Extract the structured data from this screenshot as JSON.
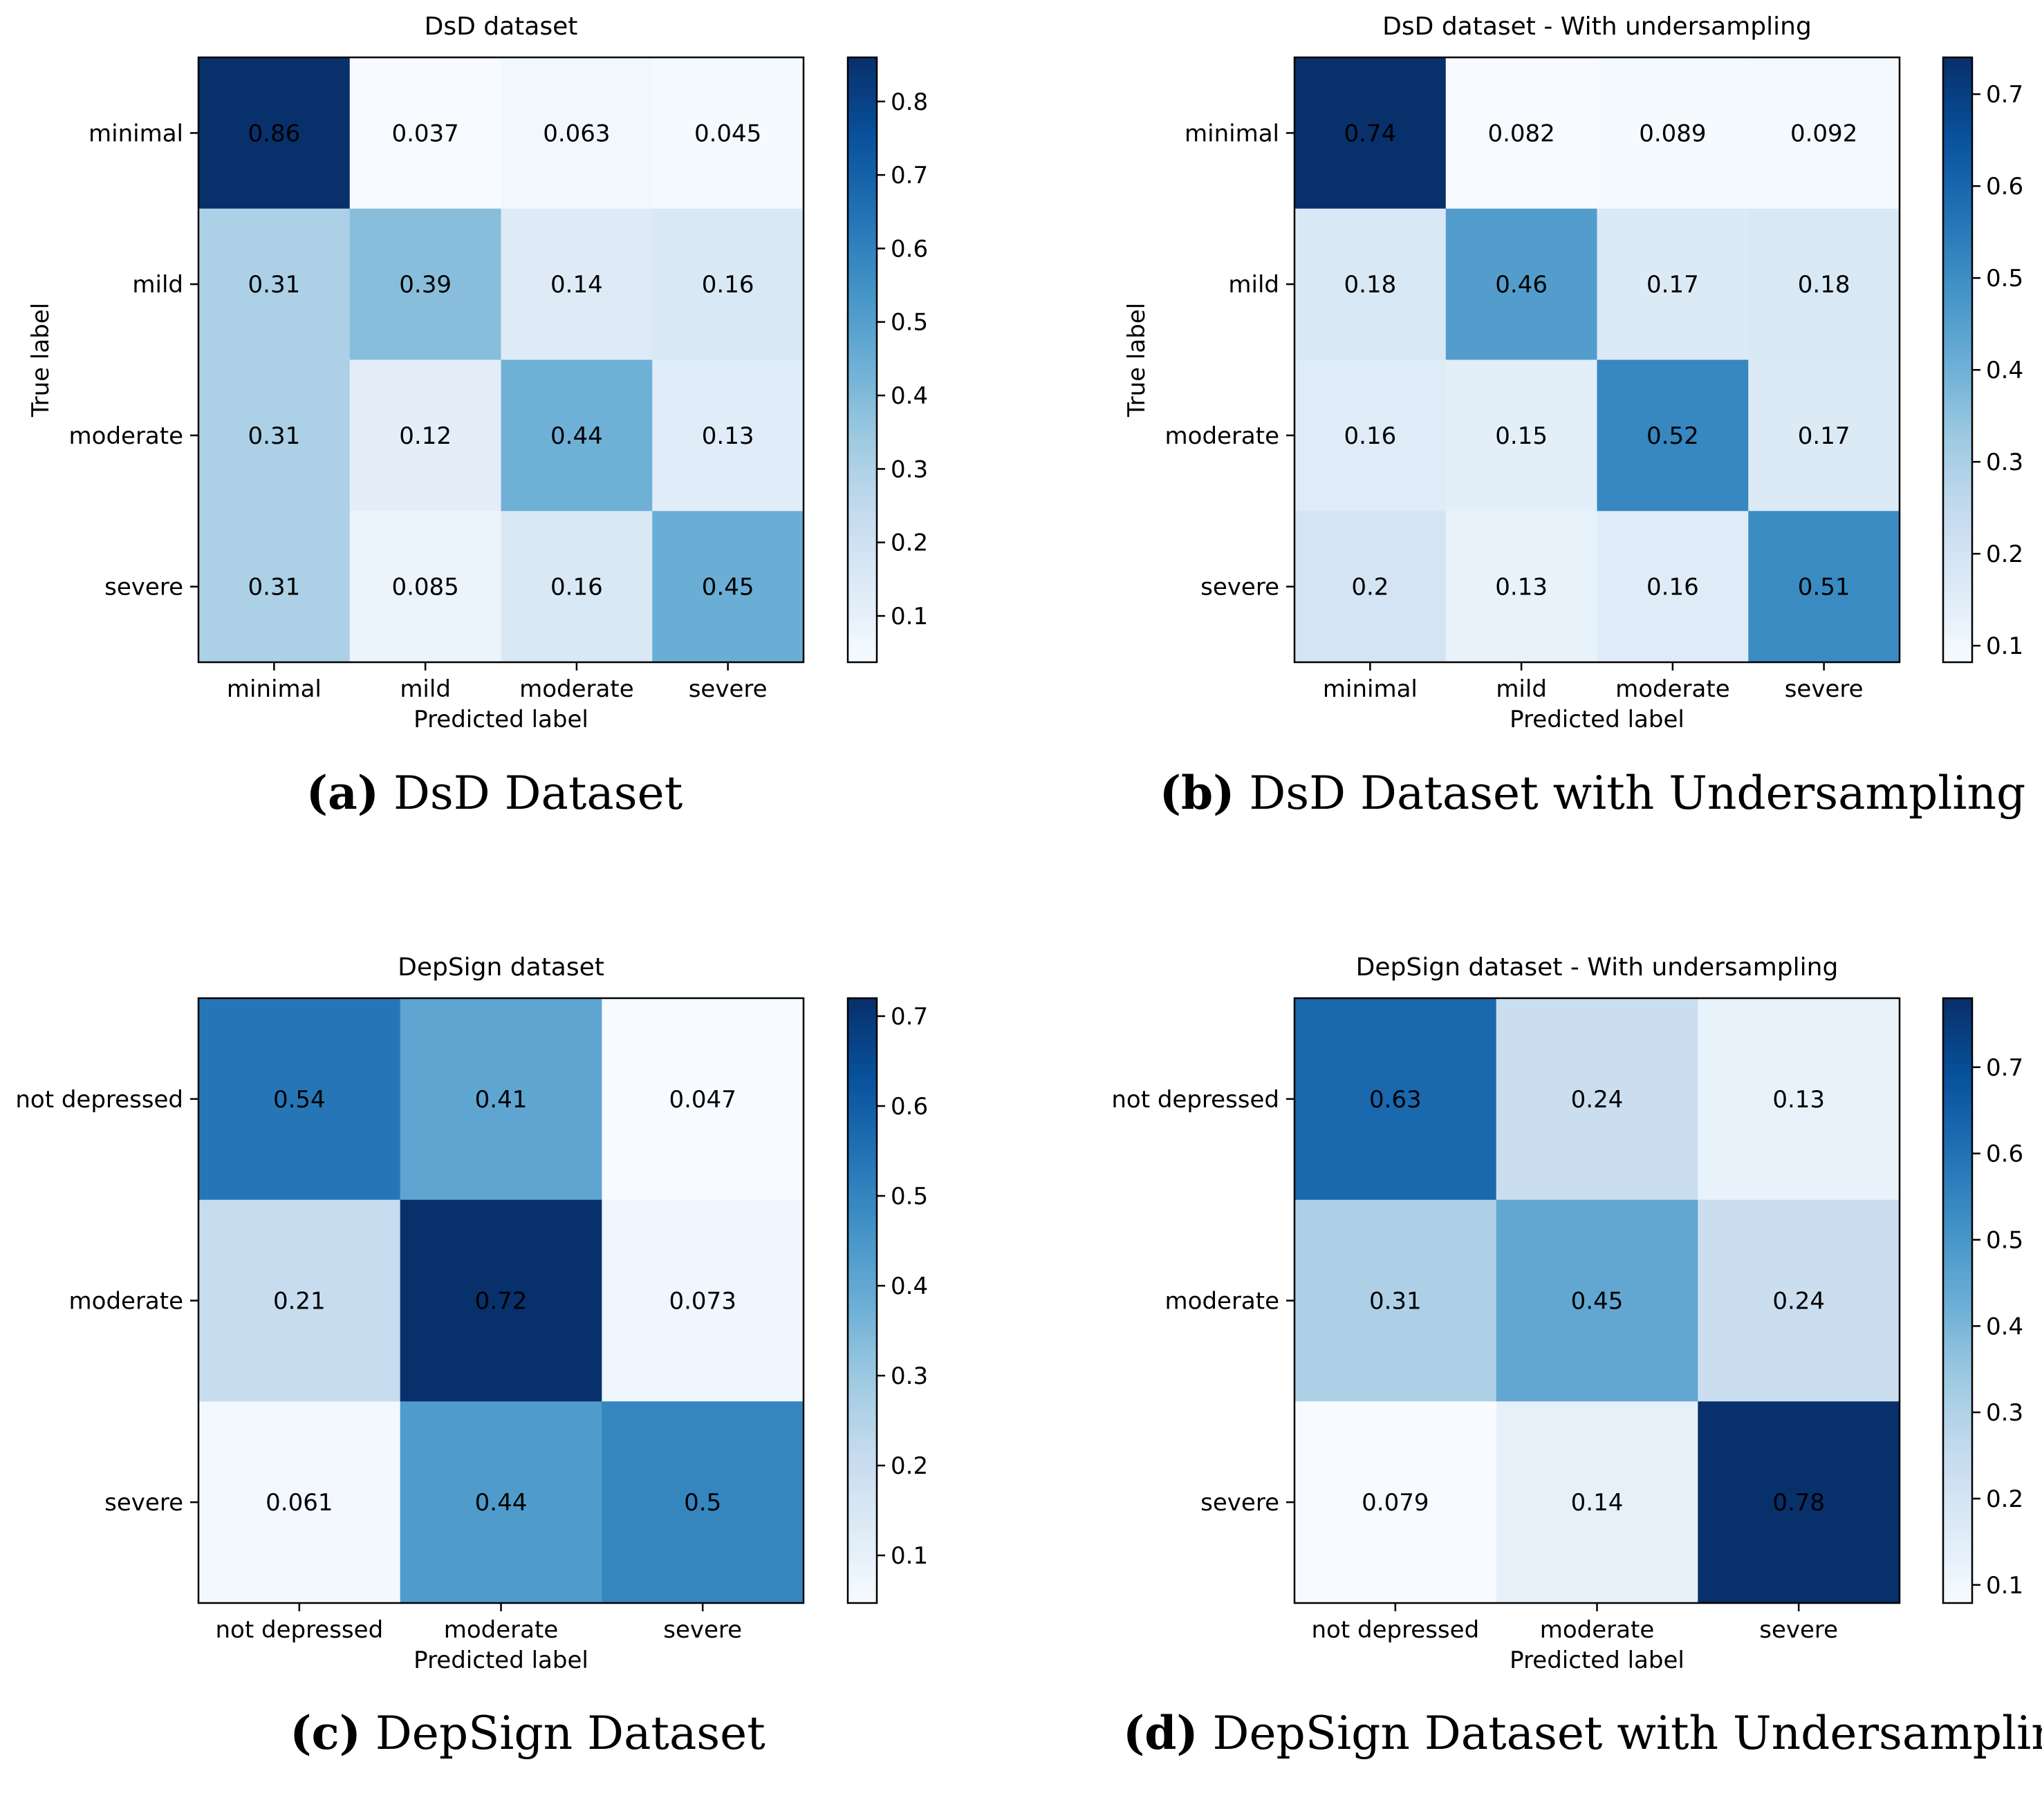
{
  "figure": {
    "panels": [
      {
        "id": "a",
        "caption_letter": "(a)",
        "caption_text": "DsD Dataset",
        "chart_data": {
          "type": "heatmap",
          "title": "DsD dataset",
          "xlabel": "Predicted label",
          "ylabel": "True label",
          "x_categories": [
            "minimal",
            "mild",
            "moderate",
            "severe"
          ],
          "y_categories": [
            "minimal",
            "mild",
            "moderate",
            "severe"
          ],
          "cell_labels": [
            [
              "0.86",
              "0.037",
              "0.063",
              "0.045"
            ],
            [
              "0.31",
              "0.39",
              "0.14",
              "0.16"
            ],
            [
              "0.31",
              "0.12",
              "0.44",
              "0.13"
            ],
            [
              "0.31",
              "0.085",
              "0.16",
              "0.45"
            ]
          ],
          "colormap": "Blues",
          "color_range": [
            0.037,
            0.86
          ],
          "colorbar_ticks": [
            "0.1",
            "0.2",
            "0.3",
            "0.4",
            "0.5",
            "0.6",
            "0.7",
            "0.8"
          ]
        }
      },
      {
        "id": "b",
        "caption_letter": "(b)",
        "caption_text": "DsD Dataset with Undersampling",
        "chart_data": {
          "type": "heatmap",
          "title": "DsD dataset - With undersampling",
          "xlabel": "Predicted label",
          "ylabel": "True label",
          "x_categories": [
            "minimal",
            "mild",
            "moderate",
            "severe"
          ],
          "y_categories": [
            "minimal",
            "mild",
            "moderate",
            "severe"
          ],
          "cell_labels": [
            [
              "0.74",
              "0.082",
              "0.089",
              "0.092"
            ],
            [
              "0.18",
              "0.46",
              "0.17",
              "0.18"
            ],
            [
              "0.16",
              "0.15",
              "0.52",
              "0.17"
            ],
            [
              "0.2",
              "0.13",
              "0.16",
              "0.51"
            ]
          ],
          "colormap": "Blues",
          "color_range": [
            0.082,
            0.74
          ],
          "colorbar_ticks": [
            "0.1",
            "0.2",
            "0.3",
            "0.4",
            "0.5",
            "0.6",
            "0.7"
          ]
        }
      },
      {
        "id": "c",
        "caption_letter": "(c)",
        "caption_text": "DepSign Dataset",
        "chart_data": {
          "type": "heatmap",
          "title": "DepSign dataset",
          "xlabel": "Predicted label",
          "ylabel": "",
          "x_categories": [
            "not depressed",
            "moderate",
            "severe"
          ],
          "y_categories": [
            "not depressed",
            "moderate",
            "severe"
          ],
          "cell_labels": [
            [
              "0.54",
              "0.41",
              "0.047"
            ],
            [
              "0.21",
              "0.72",
              "0.073"
            ],
            [
              "0.061",
              "0.44",
              "0.5"
            ]
          ],
          "colormap": "Blues",
          "color_range": [
            0.047,
            0.72
          ],
          "colorbar_ticks": [
            "0.1",
            "0.2",
            "0.3",
            "0.4",
            "0.5",
            "0.6",
            "0.7"
          ]
        }
      },
      {
        "id": "d",
        "caption_letter": "(d)",
        "caption_text": "DepSign Dataset with Undersampling",
        "chart_data": {
          "type": "heatmap",
          "title": "DepSign dataset - With undersampling",
          "xlabel": "Predicted label",
          "ylabel": "",
          "x_categories": [
            "not depressed",
            "moderate",
            "severe"
          ],
          "y_categories": [
            "not depressed",
            "moderate",
            "severe"
          ],
          "cell_labels": [
            [
              "0.63",
              "0.24",
              "0.13"
            ],
            [
              "0.31",
              "0.45",
              "0.24"
            ],
            [
              "0.079",
              "0.14",
              "0.78"
            ]
          ],
          "colormap": "Blues",
          "color_range": [
            0.079,
            0.78
          ],
          "colorbar_ticks": [
            "0.1",
            "0.2",
            "0.3",
            "0.4",
            "0.5",
            "0.6",
            "0.7"
          ]
        }
      }
    ]
  }
}
